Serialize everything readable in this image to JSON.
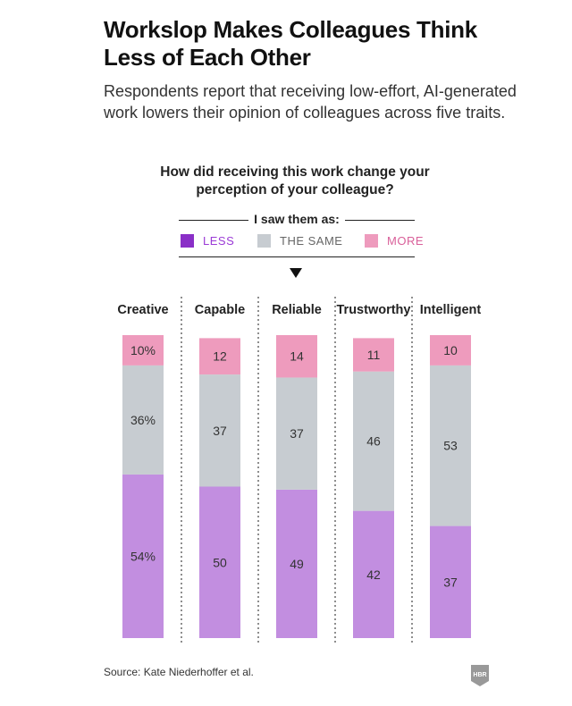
{
  "title": "Workslop Makes Colleagues Think Less of Each Other",
  "subtitle": "Respondents report that receiving low-effort, AI-generated work lowers their opinion of colleagues across five traits.",
  "source": "Source: Kate Niederhoffer et al.",
  "logo_text": "HBR",
  "colors": {
    "less": "#c28ee0",
    "same": "#c7ccd1",
    "more": "#ee9bbd",
    "less_swatch": "#8a2fc7",
    "less_label": "#9b3bd6",
    "same_label": "#666666",
    "more_label": "#d9609a"
  },
  "chart_data": {
    "type": "bar",
    "stacked": true,
    "orientation": "vertical",
    "question": "How did receiving this work change your perception of your colleague?",
    "legend_title": "I saw them as:",
    "categories": [
      "Creative",
      "Capable",
      "Reliable",
      "Trustworthy",
      "Intelligent"
    ],
    "series": [
      {
        "name": "LESS",
        "values": [
          54,
          50,
          49,
          42,
          37
        ],
        "labels": [
          "54%",
          "50",
          "49",
          "42",
          "37"
        ]
      },
      {
        "name": "THE SAME",
        "values": [
          36,
          37,
          37,
          46,
          53
        ],
        "labels": [
          "36%",
          "37",
          "37",
          "46",
          "53"
        ]
      },
      {
        "name": "MORE",
        "values": [
          10,
          12,
          14,
          11,
          10
        ],
        "labels": [
          "10%",
          "12",
          "14",
          "11",
          "10"
        ]
      }
    ],
    "ylim": [
      0,
      100
    ],
    "legend_position": "top"
  }
}
